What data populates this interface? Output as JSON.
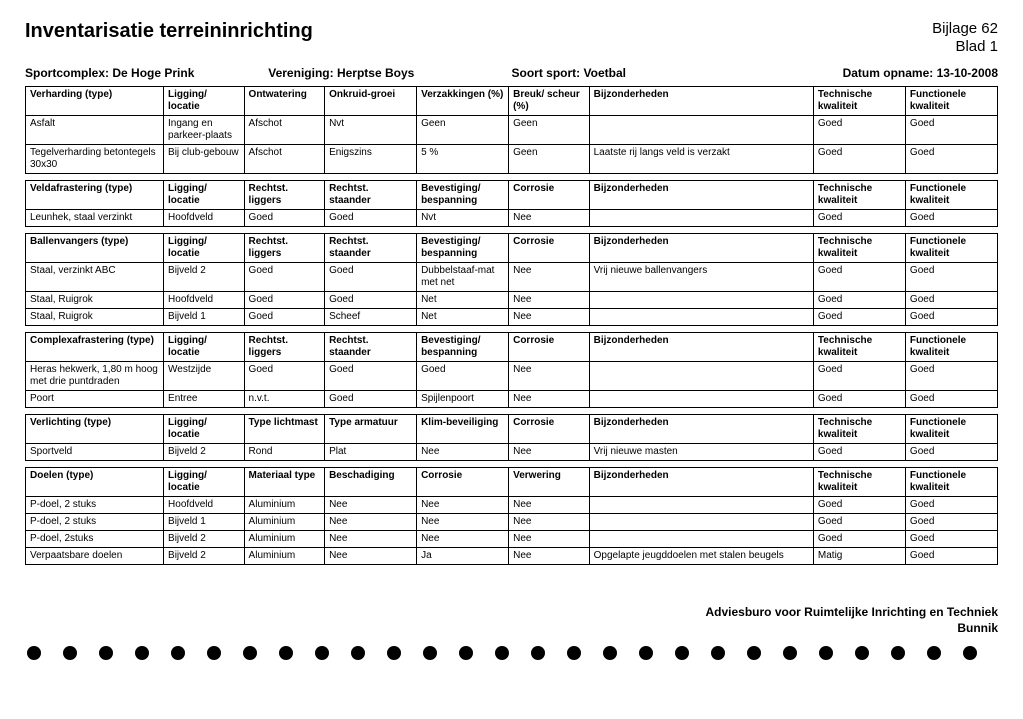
{
  "title": "Inventarisatie terreininrichting",
  "bijlage": "Bijlage 62",
  "blad": "Blad 1",
  "meta": {
    "sportcomplex_label": "Sportcomplex:",
    "sportcomplex": "De Hoge Prink",
    "vereniging_label": "Vereniging:",
    "vereniging": "Herptse Boys",
    "soort_label": "Soort sport:",
    "soort": "Voetbal",
    "datum_label": "Datum opname:",
    "datum": "13-10-2008"
  },
  "t1": {
    "h": [
      "Verharding (type)",
      "Ligging/ locatie",
      "Ontwatering",
      "Onkruid-groei",
      "Verzakkingen (%)",
      "Breuk/ scheur (%)",
      "Bijzonderheden",
      "Technische kwaliteit",
      "Functionele kwaliteit"
    ],
    "rows": [
      [
        "Asfalt",
        "Ingang en parkeer-plaats",
        "Afschot",
        "Nvt",
        "Geen",
        "Geen",
        "",
        "Goed",
        "Goed"
      ],
      [
        "Tegelverharding betontegels 30x30",
        "Bij club-gebouw",
        "Afschot",
        "Enigszins",
        "5 %",
        "Geen",
        "Laatste rij langs veld is verzakt",
        "Goed",
        "Goed"
      ]
    ]
  },
  "t2": {
    "h": [
      "Veldafrastering (type)",
      "Ligging/ locatie",
      "Rechtst. liggers",
      "Rechtst. staander",
      "Bevestiging/ bespanning",
      "Corrosie",
      "Bijzonderheden",
      "Technische kwaliteit",
      "Functionele kwaliteit"
    ],
    "rows": [
      [
        "Leunhek, staal verzinkt",
        "Hoofdveld",
        "Goed",
        "Goed",
        "Nvt",
        "Nee",
        "",
        "Goed",
        "Goed"
      ]
    ]
  },
  "t3": {
    "h": [
      "Ballenvangers (type)",
      "Ligging/ locatie",
      "Rechtst. liggers",
      "Rechtst. staander",
      "Bevestiging/ bespanning",
      "Corrosie",
      "Bijzonderheden",
      "Technische kwaliteit",
      "Functionele kwaliteit"
    ],
    "rows": [
      [
        "Staal, verzinkt ABC",
        "Bijveld 2",
        "Goed",
        "Goed",
        "Dubbelstaaf-mat met net",
        "Nee",
        "Vrij nieuwe ballenvangers",
        "Goed",
        "Goed"
      ],
      [
        "Staal, Ruigrok",
        "Hoofdveld",
        "Goed",
        "Goed",
        "Net",
        "Nee",
        "",
        "Goed",
        "Goed"
      ],
      [
        "Staal, Ruigrok",
        "Bijveld 1",
        "Goed",
        "Scheef",
        "Net",
        "Nee",
        "",
        "Goed",
        "Goed"
      ]
    ]
  },
  "t4": {
    "h": [
      "Complexafrastering (type)",
      "Ligging/ locatie",
      "Rechtst. liggers",
      "Rechtst. staander",
      "Bevestiging/ bespanning",
      "Corrosie",
      "Bijzonderheden",
      "Technische kwaliteit",
      "Functionele kwaliteit"
    ],
    "rows": [
      [
        "Heras hekwerk, 1,80 m hoog met drie puntdraden",
        "Westzijde",
        "Goed",
        "Goed",
        "Goed",
        "Nee",
        "",
        "Goed",
        "Goed"
      ],
      [
        "Poort",
        "Entree",
        "n.v.t.",
        "Goed",
        "Spijlenpoort",
        "Nee",
        "",
        "Goed",
        "Goed"
      ]
    ]
  },
  "t5": {
    "h": [
      "Verlichting (type)",
      "Ligging/ locatie",
      "Type lichtmast",
      "Type armatuur",
      "Klim-beveiliging",
      "Corrosie",
      "Bijzonderheden",
      "Technische kwaliteit",
      "Functionele kwaliteit"
    ],
    "rows": [
      [
        "Sportveld",
        "Bijveld 2",
        "Rond",
        "Plat",
        "Nee",
        "Nee",
        "Vrij nieuwe masten",
        "Goed",
        "Goed"
      ]
    ]
  },
  "t6": {
    "h": [
      "Doelen (type)",
      "Ligging/ locatie",
      "Materiaal type",
      "Beschadiging",
      "Corrosie",
      "Verwering",
      "Bijzonderheden",
      "Technische kwaliteit",
      "Functionele kwaliteit"
    ],
    "rows": [
      [
        "P-doel, 2 stuks",
        "Hoofdveld",
        "Aluminium",
        "Nee",
        "Nee",
        "Nee",
        "",
        "Goed",
        "Goed"
      ],
      [
        "P-doel, 2 stuks",
        "Bijveld 1",
        "Aluminium",
        "Nee",
        "Nee",
        "Nee",
        "",
        "Goed",
        "Goed"
      ],
      [
        "P-doel, 2stuks",
        "Bijveld 2",
        "Aluminium",
        "Nee",
        "Nee",
        "Nee",
        "",
        "Goed",
        "Goed"
      ],
      [
        "Verpaatsbare doelen",
        "Bijveld 2",
        "Aluminium",
        "Nee",
        "Ja",
        "Nee",
        "Opgelapte jeugddoelen met stalen beugels",
        "Matig",
        "Goed"
      ]
    ]
  },
  "footer1": "Adviesburo voor Ruimtelijke Inrichting en Techniek",
  "footer2": "Bunnik"
}
